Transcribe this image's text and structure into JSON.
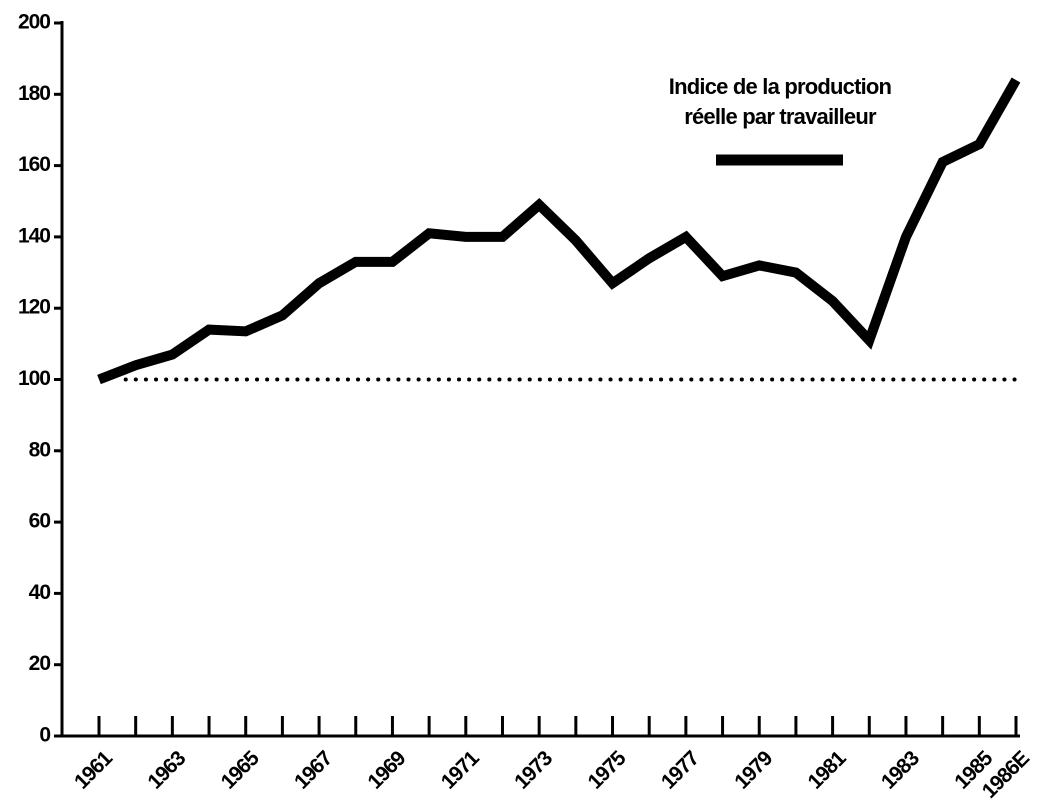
{
  "chart_data": {
    "type": "line",
    "categories": [
      "1961",
      null,
      "1963",
      null,
      "1965",
      null,
      "1967",
      null,
      "1969",
      null,
      "1971",
      null,
      "1973",
      null,
      "1975",
      null,
      "1977",
      null,
      "1979",
      null,
      "1981",
      null,
      "1983",
      null,
      "1985",
      "1986E"
    ],
    "series": [
      {
        "name": "Indice de la production réelle par travailleur",
        "color": "#000000",
        "values": [
          100,
          104,
          107,
          114,
          113.5,
          118,
          127,
          133,
          133,
          141,
          140,
          140,
          149,
          139,
          127,
          134,
          140,
          129,
          132,
          130,
          122,
          111,
          140,
          161,
          166,
          184
        ]
      }
    ],
    "reference_line": 100,
    "ylim": [
      0,
      200
    ],
    "yticks": [
      0,
      20,
      40,
      60,
      80,
      100,
      120,
      140,
      160,
      180,
      200
    ],
    "grid": false
  }
}
